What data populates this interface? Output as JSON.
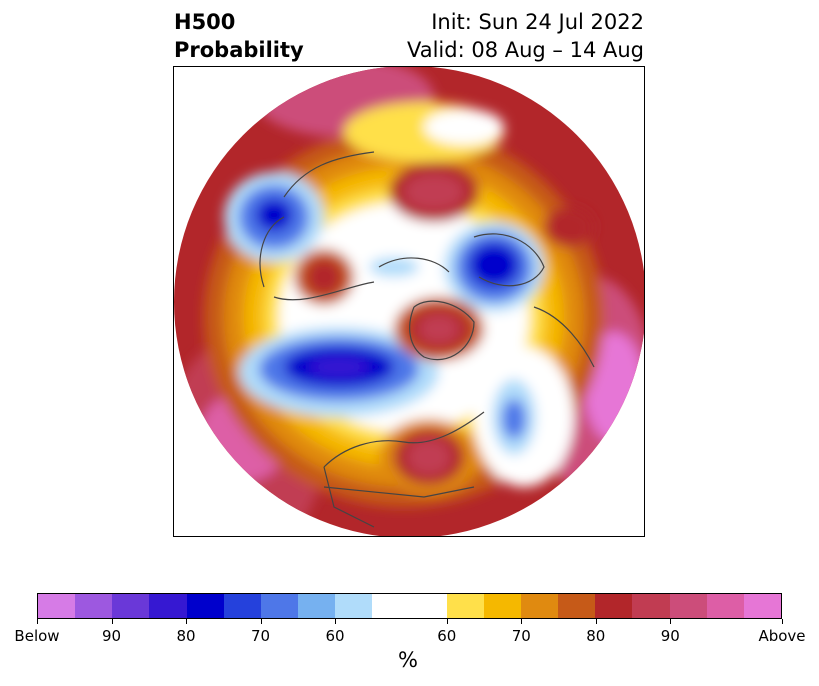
{
  "header": {
    "title_line1": "H500",
    "title_line2": "Probability",
    "init_text": "Init: Sun 24 Jul 2022",
    "valid_text": "Valid: 08 Aug – 14 Aug"
  },
  "colorbar": {
    "colors": [
      "#d67be6",
      "#9d58e0",
      "#6a38d8",
      "#3618d2",
      "#0000cc",
      "#2541dc",
      "#4e77e8",
      "#76b1f0",
      "#b0dcfa",
      "#ffffff",
      "#ffe04a",
      "#f5b800",
      "#e08a10",
      "#c65a18",
      "#b2262a",
      "#c13c52",
      "#cc4d7a",
      "#dd5ea6",
      "#e676d6"
    ],
    "tick_labels": [
      "Below",
      "90",
      "80",
      "70",
      "60",
      "60",
      "70",
      "80",
      "90",
      "Above"
    ],
    "unit_label": "%"
  },
  "map": {
    "projection": "north-polar-stereographic",
    "field": "500 hPa height anomaly probability",
    "above_colors": [
      "#ffe04a",
      "#f5b800",
      "#e08a10",
      "#c65a18",
      "#b2262a",
      "#c13c52",
      "#cc4d7a",
      "#dd5ea6"
    ],
    "below_colors": [
      "#b0dcfa",
      "#76b1f0",
      "#4e77e8",
      "#2541dc",
      "#0000cc"
    ]
  }
}
